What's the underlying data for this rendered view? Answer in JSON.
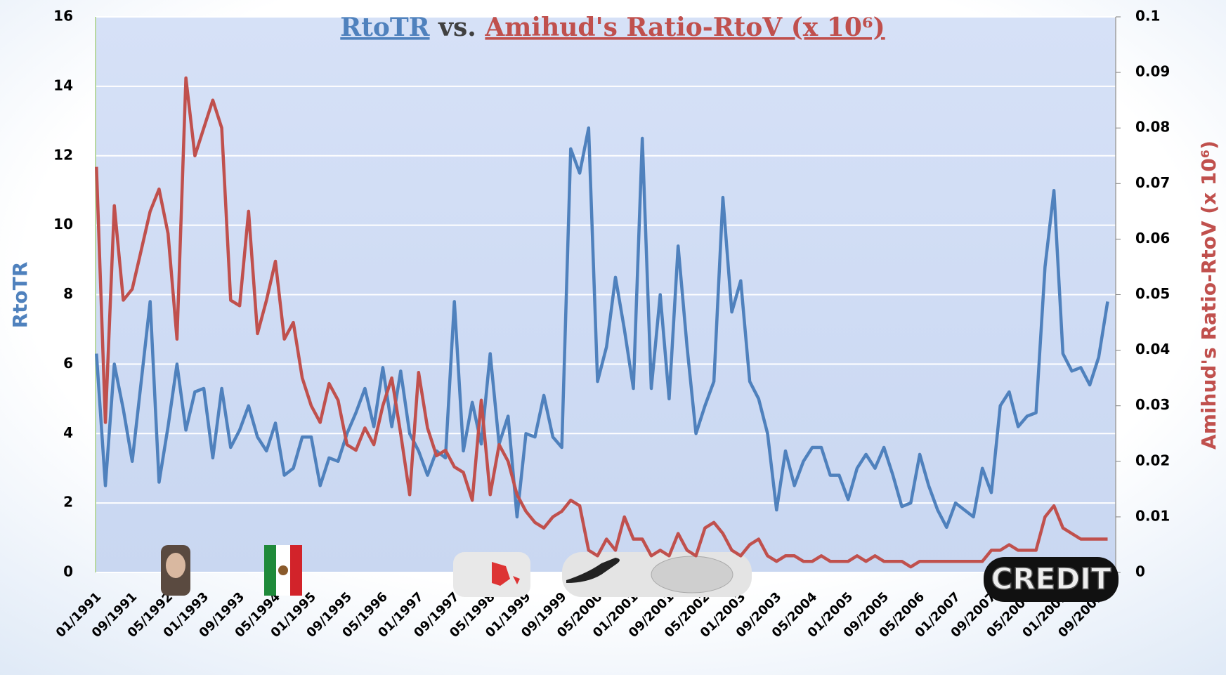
{
  "chart_data": {
    "type": "line",
    "title": [
      "RtoTR",
      "vs.",
      "Amihud's  Ratio-RtoV (x 10⁶)"
    ],
    "ylabel": "RtoTR",
    "y2label": "Amihud's Ratio-RtoV (x 10⁶)",
    "annotations": [
      "CREDIT"
    ],
    "categories": [
      "01/1991",
      null,
      null,
      null,
      "09/1991",
      null,
      null,
      null,
      "05/1992",
      null,
      null,
      null,
      "01/1993",
      null,
      null,
      null,
      "09/1993",
      null,
      null,
      null,
      "05/1994",
      null,
      null,
      null,
      "01/1995",
      null,
      null,
      null,
      "09/1995",
      null,
      null,
      null,
      "05/1996",
      null,
      null,
      null,
      "01/1997",
      null,
      null,
      null,
      "09/1997",
      null,
      null,
      null,
      "05/1998",
      null,
      null,
      null,
      "01/1999",
      null,
      null,
      null,
      "09/1999",
      null,
      null,
      null,
      "05/2000",
      null,
      null,
      null,
      "01/2001",
      null,
      null,
      null,
      "09/2001",
      null,
      null,
      null,
      "05/2002",
      null,
      null,
      null,
      "01/2003",
      null,
      null,
      null,
      "09/2003",
      null,
      null,
      null,
      "05/2004",
      null,
      null,
      null,
      "01/2005",
      null,
      null,
      null,
      "09/2005",
      null,
      null,
      null,
      "05/2006",
      null,
      null,
      null,
      "01/2007",
      null,
      null,
      null,
      "09/2007",
      null,
      null,
      null,
      "05/2008",
      null,
      null,
      null,
      "01/2009",
      null,
      null,
      null,
      "09/2009",
      null
    ],
    "series": [
      {
        "name": "RtoTR",
        "color": "#4f81bd",
        "axis": "y",
        "values": [
          6.3,
          2.5,
          6.0,
          4.7,
          3.2,
          5.5,
          7.8,
          2.6,
          4.2,
          6.0,
          4.1,
          5.2,
          5.3,
          3.3,
          5.3,
          3.6,
          4.1,
          4.8,
          3.9,
          3.5,
          4.3,
          2.8,
          3.0,
          3.9,
          3.9,
          2.5,
          3.3,
          3.2,
          4.0,
          4.6,
          5.3,
          4.2,
          5.9,
          4.2,
          5.8,
          4.0,
          3.5,
          2.8,
          3.5,
          3.3,
          7.8,
          3.5,
          4.9,
          3.7,
          6.3,
          3.7,
          4.5,
          1.6,
          4.0,
          3.9,
          5.1,
          3.9,
          3.6,
          12.2,
          11.5,
          12.8,
          5.5,
          6.5,
          8.5,
          7.0,
          5.3,
          12.5,
          5.3,
          8.0,
          5.0,
          9.4,
          6.5,
          4.0,
          4.8,
          5.5,
          10.8,
          7.5,
          8.4,
          5.5,
          5.0,
          4.0,
          1.8,
          3.5,
          2.5,
          3.2,
          3.6,
          3.6,
          2.8,
          2.8,
          2.1,
          3.0,
          3.4,
          3.0,
          3.6,
          2.8,
          1.9,
          2.0,
          3.4,
          2.5,
          1.8,
          1.3,
          2.0,
          1.8,
          1.6,
          3.0,
          2.3,
          4.8,
          5.2,
          4.2,
          4.5,
          4.6,
          8.8,
          11.0,
          6.3,
          5.8,
          5.9,
          5.4,
          6.2,
          7.8
        ]
      },
      {
        "name": "Amihud's Ratio-RtoV (x 10⁶)",
        "color": "#c0504d",
        "axis": "y2",
        "values": [
          0.073,
          0.027,
          0.066,
          0.049,
          0.051,
          0.058,
          0.065,
          0.069,
          0.061,
          0.042,
          0.089,
          0.075,
          0.08,
          0.085,
          0.08,
          0.049,
          0.048,
          0.065,
          0.043,
          0.049,
          0.056,
          0.042,
          0.045,
          0.035,
          0.03,
          0.027,
          0.034,
          0.031,
          0.023,
          0.022,
          0.026,
          0.023,
          0.03,
          0.035,
          0.025,
          0.014,
          0.036,
          0.026,
          0.021,
          0.022,
          0.019,
          0.018,
          0.013,
          0.031,
          0.014,
          0.023,
          0.02,
          0.014,
          0.011,
          0.009,
          0.008,
          0.01,
          0.011,
          0.013,
          0.012,
          0.004,
          0.003,
          0.006,
          0.004,
          0.01,
          0.006,
          0.006,
          0.003,
          0.004,
          0.003,
          0.007,
          0.004,
          0.003,
          0.008,
          0.009,
          0.007,
          0.004,
          0.003,
          0.005,
          0.006,
          0.003,
          0.002,
          0.003,
          0.003,
          0.002,
          0.002,
          0.003,
          0.002,
          0.002,
          0.002,
          0.003,
          0.002,
          0.003,
          0.002,
          0.002,
          0.002,
          0.001,
          0.002,
          0.002,
          0.002,
          0.002,
          0.002,
          0.002,
          0.002,
          0.002,
          0.004,
          0.004,
          0.005,
          0.004,
          0.004,
          0.004,
          0.01,
          0.012,
          0.008,
          0.007,
          0.006,
          0.006,
          0.006,
          0.006
        ]
      }
    ],
    "ylim": [
      0,
      16
    ],
    "yticks": [
      0,
      2,
      4,
      6,
      8,
      10,
      12,
      14,
      16
    ],
    "y2lim": [
      0,
      0.1
    ],
    "y2ticks": [
      0,
      0.01,
      0.02,
      0.03,
      0.04,
      0.05,
      0.06,
      0.07,
      0.08,
      0.09,
      0.1
    ],
    "grid": true
  }
}
